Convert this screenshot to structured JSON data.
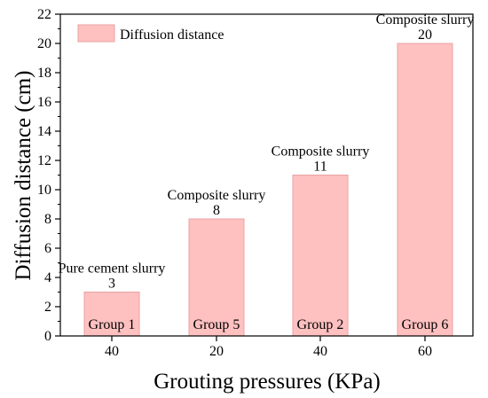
{
  "chart_data": {
    "type": "bar",
    "categories": [
      "40",
      "20",
      "40",
      "60"
    ],
    "values": [
      3,
      8,
      11,
      20
    ],
    "bar_group_labels": [
      "Group 1",
      "Group 5",
      "Group 2",
      "Group 6"
    ],
    "bar_annotations": [
      "Pure cement slurry",
      "Composite slurry",
      "Composite slurry",
      "Composite slurry"
    ],
    "data_labels": [
      "3",
      "8",
      "11",
      "20"
    ],
    "series": [
      {
        "name": "Diffusion distance",
        "values": [
          3,
          8,
          11,
          20
        ]
      }
    ],
    "xlabel": "Grouting pressures (KPa)",
    "ylabel": "Diffusion distance (cm)",
    "ylim": [
      0,
      22
    ],
    "yticks": [
      "0",
      "2",
      "4",
      "6",
      "8",
      "10",
      "12",
      "14",
      "16",
      "18",
      "20",
      "22"
    ],
    "grid": false,
    "legend_position": "top-left",
    "bar_color": "#ffc0c0",
    "bar_edge_color": "#e8a3a3"
  }
}
